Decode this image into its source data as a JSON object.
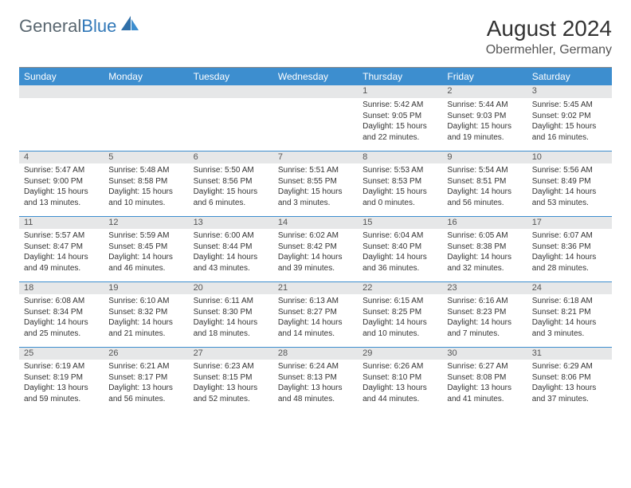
{
  "logo": {
    "text_gray": "General",
    "text_blue": "Blue"
  },
  "title": "August 2024",
  "subtitle": "Obermehler, Germany",
  "colors": {
    "header_bg": "#3d8ecf",
    "header_fg": "#ffffff",
    "daynum_bg": "#e6e7e8",
    "text": "#333333",
    "logo_gray": "#5a6770",
    "logo_blue": "#3178b8"
  },
  "day_headers": [
    "Sunday",
    "Monday",
    "Tuesday",
    "Wednesday",
    "Thursday",
    "Friday",
    "Saturday"
  ],
  "weeks": [
    [
      {
        "n": "",
        "l1": "",
        "l2": "",
        "l3": "",
        "l4": ""
      },
      {
        "n": "",
        "l1": "",
        "l2": "",
        "l3": "",
        "l4": ""
      },
      {
        "n": "",
        "l1": "",
        "l2": "",
        "l3": "",
        "l4": ""
      },
      {
        "n": "",
        "l1": "",
        "l2": "",
        "l3": "",
        "l4": ""
      },
      {
        "n": "1",
        "l1": "Sunrise: 5:42 AM",
        "l2": "Sunset: 9:05 PM",
        "l3": "Daylight: 15 hours",
        "l4": "and 22 minutes."
      },
      {
        "n": "2",
        "l1": "Sunrise: 5:44 AM",
        "l2": "Sunset: 9:03 PM",
        "l3": "Daylight: 15 hours",
        "l4": "and 19 minutes."
      },
      {
        "n": "3",
        "l1": "Sunrise: 5:45 AM",
        "l2": "Sunset: 9:02 PM",
        "l3": "Daylight: 15 hours",
        "l4": "and 16 minutes."
      }
    ],
    [
      {
        "n": "4",
        "l1": "Sunrise: 5:47 AM",
        "l2": "Sunset: 9:00 PM",
        "l3": "Daylight: 15 hours",
        "l4": "and 13 minutes."
      },
      {
        "n": "5",
        "l1": "Sunrise: 5:48 AM",
        "l2": "Sunset: 8:58 PM",
        "l3": "Daylight: 15 hours",
        "l4": "and 10 minutes."
      },
      {
        "n": "6",
        "l1": "Sunrise: 5:50 AM",
        "l2": "Sunset: 8:56 PM",
        "l3": "Daylight: 15 hours",
        "l4": "and 6 minutes."
      },
      {
        "n": "7",
        "l1": "Sunrise: 5:51 AM",
        "l2": "Sunset: 8:55 PM",
        "l3": "Daylight: 15 hours",
        "l4": "and 3 minutes."
      },
      {
        "n": "8",
        "l1": "Sunrise: 5:53 AM",
        "l2": "Sunset: 8:53 PM",
        "l3": "Daylight: 15 hours",
        "l4": "and 0 minutes."
      },
      {
        "n": "9",
        "l1": "Sunrise: 5:54 AM",
        "l2": "Sunset: 8:51 PM",
        "l3": "Daylight: 14 hours",
        "l4": "and 56 minutes."
      },
      {
        "n": "10",
        "l1": "Sunrise: 5:56 AM",
        "l2": "Sunset: 8:49 PM",
        "l3": "Daylight: 14 hours",
        "l4": "and 53 minutes."
      }
    ],
    [
      {
        "n": "11",
        "l1": "Sunrise: 5:57 AM",
        "l2": "Sunset: 8:47 PM",
        "l3": "Daylight: 14 hours",
        "l4": "and 49 minutes."
      },
      {
        "n": "12",
        "l1": "Sunrise: 5:59 AM",
        "l2": "Sunset: 8:45 PM",
        "l3": "Daylight: 14 hours",
        "l4": "and 46 minutes."
      },
      {
        "n": "13",
        "l1": "Sunrise: 6:00 AM",
        "l2": "Sunset: 8:44 PM",
        "l3": "Daylight: 14 hours",
        "l4": "and 43 minutes."
      },
      {
        "n": "14",
        "l1": "Sunrise: 6:02 AM",
        "l2": "Sunset: 8:42 PM",
        "l3": "Daylight: 14 hours",
        "l4": "and 39 minutes."
      },
      {
        "n": "15",
        "l1": "Sunrise: 6:04 AM",
        "l2": "Sunset: 8:40 PM",
        "l3": "Daylight: 14 hours",
        "l4": "and 36 minutes."
      },
      {
        "n": "16",
        "l1": "Sunrise: 6:05 AM",
        "l2": "Sunset: 8:38 PM",
        "l3": "Daylight: 14 hours",
        "l4": "and 32 minutes."
      },
      {
        "n": "17",
        "l1": "Sunrise: 6:07 AM",
        "l2": "Sunset: 8:36 PM",
        "l3": "Daylight: 14 hours",
        "l4": "and 28 minutes."
      }
    ],
    [
      {
        "n": "18",
        "l1": "Sunrise: 6:08 AM",
        "l2": "Sunset: 8:34 PM",
        "l3": "Daylight: 14 hours",
        "l4": "and 25 minutes."
      },
      {
        "n": "19",
        "l1": "Sunrise: 6:10 AM",
        "l2": "Sunset: 8:32 PM",
        "l3": "Daylight: 14 hours",
        "l4": "and 21 minutes."
      },
      {
        "n": "20",
        "l1": "Sunrise: 6:11 AM",
        "l2": "Sunset: 8:30 PM",
        "l3": "Daylight: 14 hours",
        "l4": "and 18 minutes."
      },
      {
        "n": "21",
        "l1": "Sunrise: 6:13 AM",
        "l2": "Sunset: 8:27 PM",
        "l3": "Daylight: 14 hours",
        "l4": "and 14 minutes."
      },
      {
        "n": "22",
        "l1": "Sunrise: 6:15 AM",
        "l2": "Sunset: 8:25 PM",
        "l3": "Daylight: 14 hours",
        "l4": "and 10 minutes."
      },
      {
        "n": "23",
        "l1": "Sunrise: 6:16 AM",
        "l2": "Sunset: 8:23 PM",
        "l3": "Daylight: 14 hours",
        "l4": "and 7 minutes."
      },
      {
        "n": "24",
        "l1": "Sunrise: 6:18 AM",
        "l2": "Sunset: 8:21 PM",
        "l3": "Daylight: 14 hours",
        "l4": "and 3 minutes."
      }
    ],
    [
      {
        "n": "25",
        "l1": "Sunrise: 6:19 AM",
        "l2": "Sunset: 8:19 PM",
        "l3": "Daylight: 13 hours",
        "l4": "and 59 minutes."
      },
      {
        "n": "26",
        "l1": "Sunrise: 6:21 AM",
        "l2": "Sunset: 8:17 PM",
        "l3": "Daylight: 13 hours",
        "l4": "and 56 minutes."
      },
      {
        "n": "27",
        "l1": "Sunrise: 6:23 AM",
        "l2": "Sunset: 8:15 PM",
        "l3": "Daylight: 13 hours",
        "l4": "and 52 minutes."
      },
      {
        "n": "28",
        "l1": "Sunrise: 6:24 AM",
        "l2": "Sunset: 8:13 PM",
        "l3": "Daylight: 13 hours",
        "l4": "and 48 minutes."
      },
      {
        "n": "29",
        "l1": "Sunrise: 6:26 AM",
        "l2": "Sunset: 8:10 PM",
        "l3": "Daylight: 13 hours",
        "l4": "and 44 minutes."
      },
      {
        "n": "30",
        "l1": "Sunrise: 6:27 AM",
        "l2": "Sunset: 8:08 PM",
        "l3": "Daylight: 13 hours",
        "l4": "and 41 minutes."
      },
      {
        "n": "31",
        "l1": "Sunrise: 6:29 AM",
        "l2": "Sunset: 8:06 PM",
        "l3": "Daylight: 13 hours",
        "l4": "and 37 minutes."
      }
    ]
  ]
}
